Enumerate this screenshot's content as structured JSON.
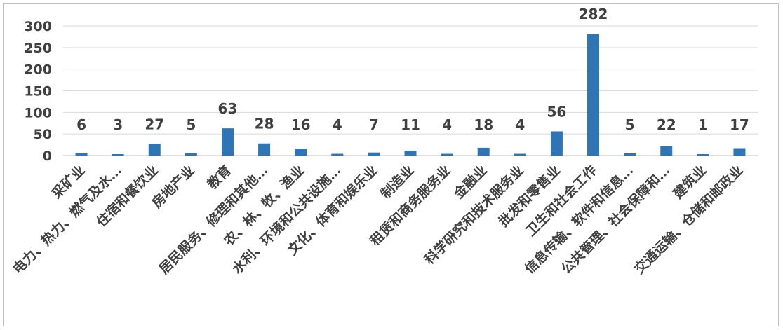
{
  "chart_data": {
    "type": "bar",
    "title": "",
    "xlabel": "",
    "ylabel": "",
    "ylim": [
      0,
      300
    ],
    "yticks": [
      0,
      50,
      100,
      150,
      200,
      250,
      300
    ],
    "grid": true,
    "legend": "none",
    "bar_color": "#2e75b6",
    "categories": [
      "采矿业",
      "电力、热力、燃气及水…",
      "住宿和餐饮业",
      "房地产业",
      "教育",
      "居民服务、修理和其他…",
      "农、林、牧、渔业",
      "水利、环境和公共设施…",
      "文化、体育和娱乐业",
      "制造业",
      "租赁和商务服务业",
      "金融业",
      "科学研究和技术服务业",
      "批发和零售业",
      "卫生和社会工作",
      "信息传输、软件和信息…",
      "公共管理、社会保障和…",
      "建筑业",
      "交通运输、仓储和邮政业"
    ],
    "values": [
      6,
      3,
      27,
      5,
      63,
      28,
      16,
      4,
      7,
      11,
      4,
      18,
      4,
      56,
      282,
      5,
      22,
      1,
      17
    ],
    "data_labels": [
      {
        "text": "6",
        "value": 6
      },
      {
        "text": "3",
        "value": 3
      },
      {
        "text": "27",
        "value": 27
      },
      {
        "text": "5",
        "value": 5
      },
      {
        "text": "63",
        "value": 63
      },
      {
        "text": "28",
        "value": 28
      },
      {
        "text": "16",
        "value": 16
      },
      {
        "text": "4",
        "value": 4
      },
      {
        "text": "7",
        "value": 7
      },
      {
        "text": "11",
        "value": 11
      },
      {
        "text": "4",
        "value": 4
      },
      {
        "text": "18",
        "value": 18
      },
      {
        "text": "4",
        "value": 4
      },
      {
        "text": "56",
        "value": 56
      },
      {
        "text": "282",
        "value": 282
      },
      {
        "text": "5",
        "value": 5
      },
      {
        "text": "22",
        "value": 22
      },
      {
        "text": "1",
        "value": 1
      },
      {
        "text": "17",
        "value": 17
      }
    ]
  }
}
